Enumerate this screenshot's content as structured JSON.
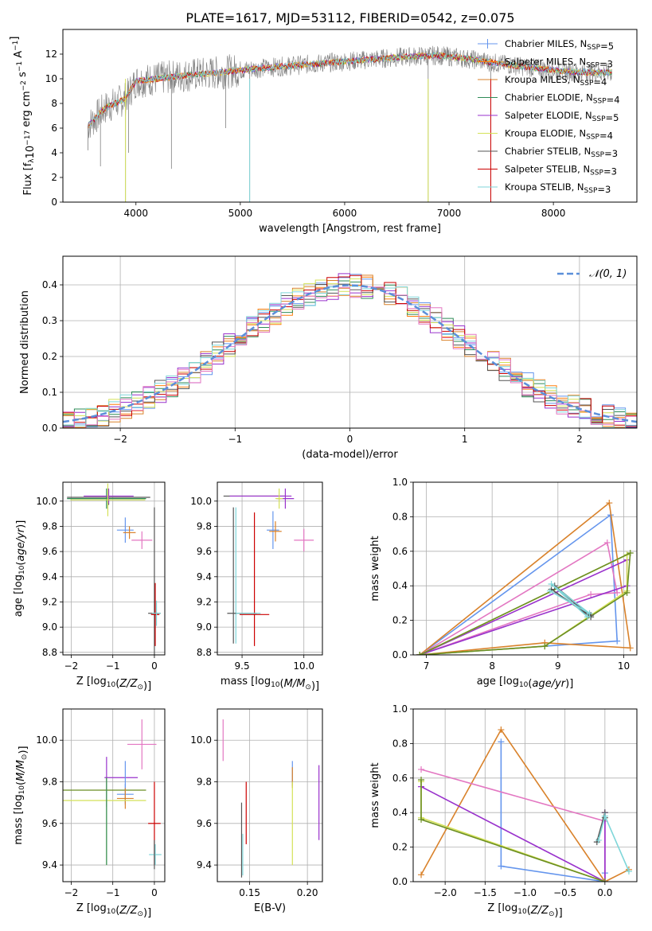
{
  "figure_title": "PLATE=1617, MJD=53112, FIBERID=0542, z=0.075",
  "palette": {
    "Chabrier MILES": "#6495ed",
    "Salpeter MILES": "#ff7f0e",
    "Kroupa MILES": "#d9822b",
    "Chabrier ELODIE": "#2e8b57",
    "Salpeter ELODIE": "#9932cc",
    "Kroupa ELODIE": "#d4e157",
    "Chabrier STELIB": "#555555",
    "Salpeter STELIB": "#cc0000",
    "Kroupa STELIB": "#7fd6d9",
    "spectrum": "#808080",
    "pink": "#e377c2",
    "green": "#6b8e23",
    "normal_curve": "#5b8fd9"
  },
  "chart_data": [
    {
      "id": "spectrum",
      "type": "line",
      "xlabel": "wavelength [Angstrom, rest frame]",
      "ylabel": "Flux [f$_\\lambda$10$^{-17}$ erg cm$^{-2}$ s$^{-1}$ A$^{-1}$]",
      "ylabel_parts": [
        "Flux [f",
        "λ",
        "10",
        "−17",
        " erg cm",
        "−2",
        " s",
        "−1",
        " A",
        "−1",
        "]"
      ],
      "xlim": [
        3300,
        8800
      ],
      "ylim": [
        0,
        14
      ],
      "xticks": [
        4000,
        5000,
        6000,
        7000,
        8000
      ],
      "yticks": [
        0,
        2,
        4,
        6,
        8,
        10,
        12
      ],
      "grid": false,
      "legend_position": "top-right",
      "legend": [
        {
          "label": "Chabrier MILES, N",
          "sub": "SSP",
          "tail": "=5",
          "color": "#6495ed"
        },
        {
          "label": "Salpeter MILES, N",
          "sub": "SSP",
          "tail": "=3",
          "color": "#ff7f0e"
        },
        {
          "label": "Kroupa MILES, N",
          "sub": "SSP",
          "tail": "=4",
          "color": "#d9822b"
        },
        {
          "label": "Chabrier ELODIE, N",
          "sub": "SSP",
          "tail": "=4",
          "color": "#2e8b57"
        },
        {
          "label": "Salpeter ELODIE, N",
          "sub": "SSP",
          "tail": "=5",
          "color": "#9932cc"
        },
        {
          "label": "Kroupa ELODIE, N",
          "sub": "SSP",
          "tail": "=4",
          "color": "#d4e157"
        },
        {
          "label": "Chabrier STELIB, N",
          "sub": "SSP",
          "tail": "=3",
          "color": "#555555"
        },
        {
          "label": "Salpeter STELIB, N",
          "sub": "SSP",
          "tail": "=3",
          "color": "#cc0000"
        },
        {
          "label": "Kroupa STELIB, N",
          "sub": "SSP",
          "tail": "=3",
          "color": "#7fd6d9"
        }
      ],
      "continuum": [
        [
          3540,
          6.2
        ],
        [
          3700,
          7.6
        ],
        [
          3900,
          8.4
        ],
        [
          4000,
          9.8
        ],
        [
          4200,
          10.0
        ],
        [
          4500,
          10.3
        ],
        [
          4800,
          10.5
        ],
        [
          5100,
          10.8
        ],
        [
          5400,
          11.0
        ],
        [
          5700,
          11.2
        ],
        [
          6000,
          11.4
        ],
        [
          6300,
          11.6
        ],
        [
          6600,
          11.8
        ],
        [
          6900,
          11.9
        ],
        [
          7200,
          11.6
        ],
        [
          7500,
          11.2
        ],
        [
          7800,
          10.9
        ],
        [
          8100,
          10.6
        ],
        [
          8400,
          10.5
        ],
        [
          8560,
          10.5
        ]
      ],
      "data_range": [
        3540,
        8560
      ],
      "drops": [
        [
          3540,
          4.2
        ],
        [
          3660,
          2.9
        ],
        [
          3900,
          0
        ],
        [
          3930,
          4.0
        ],
        [
          4340,
          2.7
        ],
        [
          4860,
          6.0
        ],
        [
          5090,
          0
        ],
        [
          6800,
          0
        ],
        [
          7400,
          0
        ]
      ]
    },
    {
      "id": "residuals",
      "type": "histogram",
      "xlabel": "(data-model)/error",
      "ylabel": "Normed distribution",
      "xlim": [
        -2.5,
        2.5
      ],
      "ylim": [
        0,
        0.48
      ],
      "xticks": [
        -2,
        -1,
        0,
        1,
        2
      ],
      "yticks": [
        0.0,
        0.1,
        0.2,
        0.3,
        0.4
      ],
      "grid": true,
      "bin_width": 0.1,
      "legend_label": "𝒩(0, 1)",
      "legend_position": "top-right",
      "series_colors": [
        "#6495ed",
        "#ff7f0e",
        "#d9822b",
        "#2e8b57",
        "#9932cc",
        "#d4e157",
        "#555555",
        "#cc0000",
        "#7fd6d9",
        "#e377c2"
      ]
    },
    {
      "id": "age_vs_Z",
      "type": "scatter",
      "xlabel": "Z [log$_{10}$(Z/Z$_\\odot$)]",
      "ylabel": "age  [log$_{10}$(age/yr)]",
      "xlim": [
        -2.2,
        0.25
      ],
      "ylim": [
        8.78,
        10.15
      ],
      "xticks": [
        -2,
        -1,
        0
      ],
      "yticks": [
        8.8,
        9.0,
        9.2,
        9.4,
        9.6,
        9.8,
        10.0
      ],
      "grid": true,
      "points": [
        {
          "x": -1.1,
          "y": 10.03,
          "xerr": 1.0,
          "yerr": 0.06,
          "color": "#555555"
        },
        {
          "x": -1.15,
          "y": 10.02,
          "xerr": 0.95,
          "yerr": 0.08,
          "color": "#2e8b57"
        },
        {
          "x": -1.1,
          "y": 10.04,
          "xerr": 0.6,
          "yerr": 0.06,
          "color": "#9932cc"
        },
        {
          "x": -1.12,
          "y": 10.01,
          "xerr": 0.9,
          "yerr": 0.13,
          "color": "#d4e157"
        },
        {
          "x": -0.7,
          "y": 9.77,
          "xerr": 0.2,
          "yerr": 0.1,
          "color": "#6495ed"
        },
        {
          "x": -0.6,
          "y": 9.75,
          "xerr": 0.15,
          "yerr": 0.05,
          "color": "#d9822b"
        },
        {
          "x": -0.3,
          "y": 9.69,
          "xerr": 0.25,
          "yerr": 0.07,
          "color": "#e377c2"
        },
        {
          "x": 0.0,
          "y": 9.11,
          "xerr": 0.15,
          "yerr": 0.84,
          "color": "#555555"
        },
        {
          "x": 0.02,
          "y": 9.1,
          "xerr": 0.1,
          "yerr": 0.25,
          "color": "#cc0000"
        },
        {
          "x": 0.05,
          "y": 9.11,
          "xerr": 0.1,
          "yerr": 0.1,
          "color": "#7fd6d9"
        }
      ]
    },
    {
      "id": "age_vs_mass",
      "type": "scatter",
      "xlabel": "mass [log$_{10}$(M/M$_\\odot$)]",
      "ylabel": "",
      "xlim": [
        9.3,
        10.15
      ],
      "ylim": [
        8.78,
        10.15
      ],
      "xticks": [
        9.5,
        10.0
      ],
      "yticks": [
        8.8,
        9.0,
        9.2,
        9.4,
        9.6,
        9.8,
        10.0
      ],
      "grid": true,
      "points": [
        {
          "x": 9.6,
          "y": 10.04,
          "xerr": 0.25,
          "yerr": 0.0,
          "color": "#555555"
        },
        {
          "x": 9.65,
          "y": 10.04,
          "xerr": 0.25,
          "yerr": 0.0,
          "color": "#9932cc"
        },
        {
          "x": 9.85,
          "y": 10.02,
          "xerr": 0.07,
          "yerr": 0.08,
          "color": "#9932cc"
        },
        {
          "x": 9.8,
          "y": 10.02,
          "xerr": 0.03,
          "yerr": 0.08,
          "color": "#d4e157"
        },
        {
          "x": 9.75,
          "y": 9.77,
          "xerr": 0.05,
          "yerr": 0.15,
          "color": "#6495ed"
        },
        {
          "x": 9.77,
          "y": 9.76,
          "xerr": 0.05,
          "yerr": 0.08,
          "color": "#d9822b"
        },
        {
          "x": 10.0,
          "y": 9.69,
          "xerr": 0.08,
          "yerr": 0.09,
          "color": "#e377c2"
        },
        {
          "x": 9.45,
          "y": 9.41,
          "xerr": 0.0,
          "yerr": 0.54,
          "color": "#7fd6d9"
        },
        {
          "x": 9.43,
          "y": 9.41,
          "xerr": 0.0,
          "yerr": 0.54,
          "color": "#555555"
        },
        {
          "x": 9.6,
          "y": 9.38,
          "xerr": 0.0,
          "yerr": 0.53,
          "color": "#cc0000"
        },
        {
          "x": 9.5,
          "y": 9.11,
          "xerr": 0.12,
          "yerr": 0.0,
          "color": "#555555"
        },
        {
          "x": 9.6,
          "y": 9.1,
          "xerr": 0.12,
          "yerr": 0.0,
          "color": "#cc0000"
        },
        {
          "x": 9.55,
          "y": 9.11,
          "xerr": 0.1,
          "yerr": 0.0,
          "color": "#7fd6d9"
        }
      ]
    },
    {
      "id": "weight_vs_age",
      "type": "line",
      "xlabel": "age  [log$_{10}$(age/yr)]",
      "ylabel": "mass weight",
      "xlim": [
        6.8,
        10.2
      ],
      "ylim": [
        0,
        1.0
      ],
      "xticks": [
        7,
        8,
        9,
        10
      ],
      "yticks": [
        0.0,
        0.2,
        0.4,
        0.6,
        0.8,
        1.0
      ],
      "grid": true,
      "series": [
        {
          "color": "#6495ed",
          "pts": [
            [
              6.9,
              0.0
            ],
            [
              9.8,
              0.81
            ],
            [
              9.9,
              0.08
            ],
            [
              8.8,
              0.05
            ],
            [
              6.9,
              0.0
            ]
          ]
        },
        {
          "color": "#d9822b",
          "pts": [
            [
              6.9,
              0.0
            ],
            [
              9.78,
              0.88
            ],
            [
              10.1,
              0.04
            ],
            [
              8.8,
              0.07
            ],
            [
              6.9,
              0.0
            ]
          ]
        },
        {
          "color": "#e377c2",
          "pts": [
            [
              6.9,
              0.0
            ],
            [
              9.75,
              0.65
            ],
            [
              9.9,
              0.36
            ],
            [
              9.5,
              0.35
            ],
            [
              6.9,
              0.0
            ]
          ]
        },
        {
          "color": "#9932cc",
          "pts": [
            [
              6.9,
              0.0
            ],
            [
              10.05,
              0.55
            ],
            [
              10.05,
              0.4
            ],
            [
              6.9,
              0.0
            ]
          ]
        },
        {
          "color": "#d4e157",
          "pts": [
            [
              6.9,
              0.0
            ],
            [
              10.05,
              0.58
            ],
            [
              10.05,
              0.37
            ],
            [
              8.8,
              0.05
            ],
            [
              6.9,
              0.0
            ]
          ]
        },
        {
          "color": "#6b8e23",
          "pts": [
            [
              6.9,
              0.0
            ],
            [
              10.1,
              0.59
            ],
            [
              10.05,
              0.36
            ],
            [
              8.8,
              0.05
            ],
            [
              6.9,
              0.0
            ]
          ]
        },
        {
          "color": "#555555",
          "pts": [
            [
              8.9,
              0.38
            ],
            [
              9.5,
              0.22
            ],
            [
              8.95,
              0.4
            ],
            [
              9.5,
              0.23
            ]
          ]
        },
        {
          "color": "#7fd6d9",
          "pts": [
            [
              8.88,
              0.37
            ],
            [
              9.48,
              0.24
            ],
            [
              8.9,
              0.41
            ],
            [
              9.45,
              0.22
            ]
          ]
        }
      ]
    },
    {
      "id": "mass_vs_Z",
      "type": "scatter",
      "xlabel": "Z [log$_{10}$(Z/Z$_\\odot$)]",
      "ylabel": "mass [log$_{10}$(M/M$_\\odot$)]",
      "xlim": [
        -2.2,
        0.25
      ],
      "ylim": [
        9.32,
        10.15
      ],
      "xticks": [
        -2,
        -1,
        0
      ],
      "yticks": [
        9.4,
        9.6,
        9.8,
        10.0
      ],
      "grid": true,
      "points": [
        {
          "x": -0.3,
          "y": 9.98,
          "xerr": 0.35,
          "yerr": 0.12,
          "color": "#e377c2"
        },
        {
          "x": -0.8,
          "y": 9.82,
          "xerr": 0.4,
          "yerr": 0.0,
          "color": "#9932cc"
        },
        {
          "x": -1.15,
          "y": 9.8,
          "xerr": 0.0,
          "yerr": 0.12,
          "color": "#9932cc"
        },
        {
          "x": -0.7,
          "y": 9.8,
          "xerr": 0.0,
          "yerr": 0.1,
          "color": "#6495ed"
        },
        {
          "x": -1.2,
          "y": 9.76,
          "xerr": 1.0,
          "yerr": 0.0,
          "color": "#6b8e23"
        },
        {
          "x": -0.7,
          "y": 9.74,
          "xerr": 0.2,
          "yerr": 0.05,
          "color": "#6495ed"
        },
        {
          "x": -0.7,
          "y": 9.72,
          "xerr": 0.2,
          "yerr": 0.05,
          "color": "#d9822b"
        },
        {
          "x": -1.2,
          "y": 9.71,
          "xerr": 1.0,
          "yerr": 0.0,
          "color": "#d4e157"
        },
        {
          "x": -1.15,
          "y": 9.61,
          "xerr": 0.0,
          "yerr": 0.21,
          "color": "#d4e157"
        },
        {
          "x": -1.15,
          "y": 9.61,
          "xerr": 0.0,
          "yerr": 0.21,
          "color": "#2e8b57"
        },
        {
          "x": 0.0,
          "y": 9.6,
          "xerr": 0.15,
          "yerr": 0.2,
          "color": "#cc0000"
        },
        {
          "x": 0.02,
          "y": 9.45,
          "xerr": 0.15,
          "yerr": 0.05,
          "color": "#7fd6d9"
        },
        {
          "x": 0.0,
          "y": 9.45,
          "xerr": 0.0,
          "yerr": 0.07,
          "color": "#555555"
        }
      ]
    },
    {
      "id": "mass_vs_ebv",
      "type": "scatter",
      "xlabel": "E(B-V)",
      "ylabel": "",
      "xlim": [
        0.122,
        0.213
      ],
      "ylim": [
        9.32,
        10.15
      ],
      "xticks": [
        0.15,
        0.2
      ],
      "yticks": [
        9.4,
        9.6,
        9.8,
        10.0
      ],
      "grid": true,
      "points": [
        {
          "x": 0.127,
          "y": 10.0,
          "xerr": 0.0,
          "yerr": 0.1,
          "color": "#e377c2"
        },
        {
          "x": 0.21,
          "y": 9.7,
          "xerr": 0.0,
          "yerr": 0.18,
          "color": "#9932cc"
        },
        {
          "x": 0.187,
          "y": 9.84,
          "xerr": 0.0,
          "yerr": 0.06,
          "color": "#6495ed"
        },
        {
          "x": 0.187,
          "y": 9.82,
          "xerr": 0.0,
          "yerr": 0.05,
          "color": "#d9822b"
        },
        {
          "x": 0.187,
          "y": 9.6,
          "xerr": 0.0,
          "yerr": 0.2,
          "color": "#d4e157"
        },
        {
          "x": 0.147,
          "y": 9.65,
          "xerr": 0.0,
          "yerr": 0.15,
          "color": "#cc0000"
        },
        {
          "x": 0.143,
          "y": 9.52,
          "xerr": 0.0,
          "yerr": 0.18,
          "color": "#555555"
        },
        {
          "x": 0.144,
          "y": 9.45,
          "xerr": 0.0,
          "yerr": 0.1,
          "color": "#7fd6d9"
        }
      ]
    },
    {
      "id": "weight_vs_Z",
      "type": "line",
      "xlabel": "Z [log$_{10}$(Z/Z$_\\odot$)]",
      "ylabel": "mass weight",
      "xlim": [
        -2.4,
        0.4
      ],
      "ylim": [
        0,
        1.0
      ],
      "xticks": [
        -2.0,
        -1.5,
        -1.0,
        -0.5,
        0.0
      ],
      "yticks": [
        0.0,
        0.2,
        0.4,
        0.6,
        0.8,
        1.0
      ],
      "grid": true,
      "series": [
        {
          "color": "#6495ed",
          "pts": [
            [
              -1.3,
              0.81
            ],
            [
              -1.3,
              0.09
            ],
            [
              0.0,
              0.0
            ],
            [
              0.0,
              0.05
            ]
          ]
        },
        {
          "color": "#d9822b",
          "pts": [
            [
              -2.3,
              0.04
            ],
            [
              -1.3,
              0.88
            ],
            [
              0.0,
              0.0
            ],
            [
              0.3,
              0.07
            ]
          ]
        },
        {
          "color": "#e377c2",
          "pts": [
            [
              -2.3,
              0.65
            ],
            [
              0.0,
              0.35
            ],
            [
              0.0,
              0.0
            ]
          ]
        },
        {
          "color": "#9932cc",
          "pts": [
            [
              -2.3,
              0.55
            ],
            [
              0.0,
              0.0
            ],
            [
              0.0,
              0.4
            ]
          ]
        },
        {
          "color": "#d4e157",
          "pts": [
            [
              -2.3,
              0.58
            ],
            [
              -2.3,
              0.37
            ],
            [
              0.0,
              0.0
            ]
          ]
        },
        {
          "color": "#6b8e23",
          "pts": [
            [
              -2.3,
              0.59
            ],
            [
              -2.3,
              0.36
            ],
            [
              0.0,
              0.0
            ]
          ]
        },
        {
          "color": "#555555",
          "pts": [
            [
              -0.1,
              0.23
            ],
            [
              0.0,
              0.4
            ],
            [
              0.0,
              0.37
            ]
          ]
        },
        {
          "color": "#7fd6d9",
          "pts": [
            [
              -0.08,
              0.24
            ],
            [
              0.0,
              0.38
            ],
            [
              0.3,
              0.06
            ]
          ]
        }
      ]
    }
  ]
}
